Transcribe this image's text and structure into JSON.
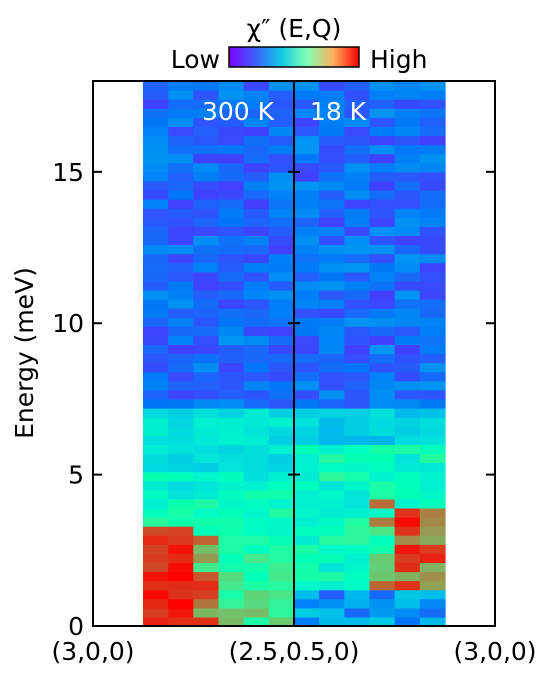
{
  "chart_data": {
    "type": "heatmap",
    "title": "χ″ (E,Q)",
    "ylabel": "Energy (meV)",
    "ylim": [
      0,
      18
    ],
    "yticks": [
      "0",
      "5",
      "10",
      "15"
    ],
    "xticks": [
      "(3,0,0)",
      "(2.5,0.5,0)",
      "(3,0,0)"
    ],
    "colorbar": {
      "low": "Low",
      "high": "High",
      "colormap": "rainbow"
    },
    "panels": [
      {
        "label": "300 K",
        "columns": 6,
        "energy_step": 0.3
      },
      {
        "label": "18 K",
        "columns": 6,
        "energy_step": 0.3
      }
    ],
    "data_extent": {
      "energy_max": 18,
      "energy_min": 0
    }
  }
}
